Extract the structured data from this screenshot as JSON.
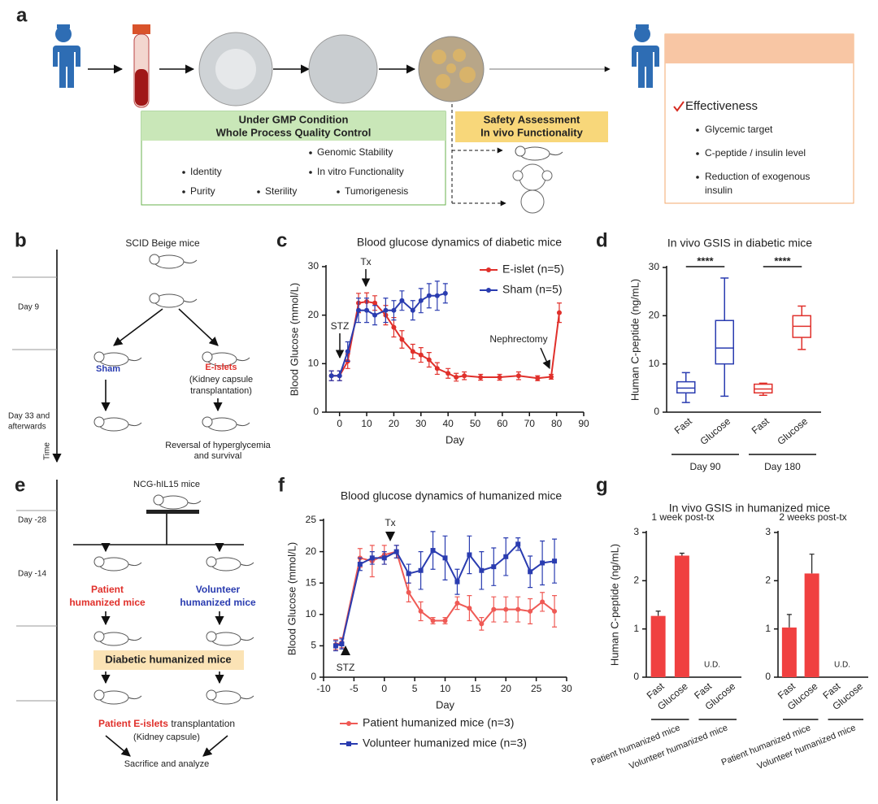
{
  "panel_a": {
    "label": "a",
    "gmp_box": {
      "title_lines": [
        "Under GMP Condition",
        "Whole Process Quality Control"
      ],
      "items": [
        "Identity",
        "Purity",
        "Sterility",
        "Tumorigenesis",
        "Genomic Stability",
        "In vitro Functionality"
      ]
    },
    "safety_box": {
      "title_lines": [
        "Safety Assessment",
        "In vivo Functionality"
      ]
    },
    "outcome_box": {
      "heading": "Effectiveness",
      "items": [
        "Glycemic target",
        "C-peptide / insulin level",
        [
          "Reduction of exogenous",
          "insulin"
        ]
      ]
    }
  },
  "panel_b": {
    "label": "b",
    "strain": "SCID Beige mice",
    "day9": "Day 9",
    "day33": [
      "Day 33 and",
      "afterwards"
    ],
    "time": "Time",
    "sham": "Sham",
    "eislets": "E-islets",
    "transplant": [
      "(Kidney capsule",
      "transplantation)"
    ],
    "outcome": [
      "Reversal of hyperglycemia",
      "and survival"
    ]
  },
  "panel_e": {
    "label": "e",
    "strain": "NCG-hIL15 mice",
    "day28": "Day -28",
    "day14": "Day -14",
    "patient": [
      "Patient",
      "humanized mice"
    ],
    "volunteer": [
      "Volunteer",
      "humanized mice"
    ],
    "diabetic": "Diabetic humanized mice",
    "transplant": [
      "Patient E-islets",
      " transplantation"
    ],
    "capsule": "(Kidney capsule)",
    "final": "Sacrifice and analyze"
  },
  "chart_data": [
    {
      "type": "line",
      "panel": "c",
      "title": "Blood glucose dynamics of diabetic mice",
      "xlabel": "Day",
      "ylabel": "Blood Glucose (mmol/L)",
      "xlim": [
        -5,
        90
      ],
      "xticks": [
        0,
        10,
        20,
        30,
        40,
        50,
        60,
        70,
        80,
        90
      ],
      "ylim": [
        0,
        30
      ],
      "yticks": [
        0,
        10,
        20,
        30
      ],
      "annotations": [
        "Tx",
        "STZ",
        "Nephrectomy"
      ],
      "series": [
        {
          "name": "E-islet (n=5)",
          "color": "#e0302b",
          "marker": "circle",
          "x": [
            -3,
            0,
            3,
            7,
            10,
            13,
            17,
            20,
            23,
            27,
            30,
            33,
            36,
            40,
            43,
            46,
            52,
            59,
            66,
            73,
            78,
            81
          ],
          "values": [
            7.5,
            7.5,
            10.5,
            22.5,
            22.8,
            22.5,
            20,
            17.5,
            15,
            12.5,
            11.8,
            10.8,
            9,
            8,
            7.2,
            7.5,
            7.2,
            7.2,
            7.5,
            7,
            7.3,
            20.5
          ],
          "errors": [
            1,
            1,
            1.5,
            2,
            1.8,
            1.5,
            2,
            2,
            1.8,
            1.5,
            1.5,
            1.5,
            1.2,
            1,
            0.8,
            0.8,
            0.6,
            0.6,
            0.8,
            0.5,
            0.5,
            2
          ]
        },
        {
          "name": "Sham (n=5)",
          "color": "#2a3cb0",
          "marker": "circle",
          "x": [
            -3,
            0,
            3,
            7,
            10,
            13,
            17,
            20,
            23,
            27,
            30,
            33,
            36,
            39
          ],
          "values": [
            7.5,
            7.5,
            12.5,
            21,
            21,
            20,
            21,
            21,
            23,
            21,
            23,
            24,
            24,
            24.5
          ],
          "errors": [
            1,
            1,
            2,
            2.5,
            2.5,
            2,
            2.5,
            2,
            2,
            2,
            2.5,
            2.5,
            3,
            2
          ]
        }
      ]
    },
    {
      "type": "box",
      "panel": "d",
      "title": "In vivo GSIS in diabetic mice",
      "ylabel": "Human C-peptide (ng/mL)",
      "ylim": [
        0,
        30
      ],
      "yticks": [
        0,
        10,
        20,
        30
      ],
      "categories": [
        "Fast",
        "Glucose",
        "Fast",
        "Glucose"
      ],
      "groups": [
        "Day 90",
        "Day 180"
      ],
      "significance": [
        "****",
        "****"
      ],
      "boxes": [
        {
          "color": "#2a3cb0",
          "min": 2,
          "q1": 4,
          "median": 5,
          "q3": 6.3,
          "max": 8.2
        },
        {
          "color": "#2a3cb0",
          "min": 3.3,
          "q1": 10,
          "median": 13.3,
          "q3": 19,
          "max": 27.8
        },
        {
          "color": "#e0302b",
          "min": 3.5,
          "q1": 4,
          "median": 4.8,
          "q3": 5.8,
          "max": 6
        },
        {
          "color": "#e0302b",
          "min": 13,
          "q1": 15.5,
          "median": 17.8,
          "q3": 20,
          "max": 22
        }
      ]
    },
    {
      "type": "line",
      "panel": "f",
      "title": "Blood glucose dynamics of humanized mice",
      "xlabel": "Day",
      "ylabel": "Blood Glucose (mmol/L)",
      "xlim": [
        -10,
        30
      ],
      "xticks": [
        -10,
        -5,
        0,
        5,
        10,
        15,
        20,
        25,
        30
      ],
      "ylim": [
        0,
        25
      ],
      "yticks": [
        0,
        5,
        10,
        15,
        20,
        25
      ],
      "annotations": [
        "Tx",
        "STZ"
      ],
      "series": [
        {
          "name": "Patient humanized mice (n=3)",
          "color": "#ef5a55",
          "marker": "circle",
          "x": [
            -8,
            -7,
            -4,
            -2,
            0,
            2,
            4,
            6,
            8,
            10,
            12,
            14,
            16,
            18,
            20,
            22,
            24,
            26,
            28
          ],
          "values": [
            5.2,
            5.5,
            19,
            18.5,
            19.5,
            20,
            13.5,
            10.5,
            9,
            9,
            11.8,
            11,
            8.5,
            10.8,
            10.8,
            10.8,
            10.5,
            12,
            10.5
          ],
          "errors": [
            0.8,
            0.8,
            1.5,
            2.5,
            1.5,
            1,
            1.5,
            1.5,
            0.5,
            0.5,
            1,
            2,
            1,
            2,
            2,
            2,
            2,
            1.5,
            2.5
          ]
        },
        {
          "name": "Volunteer humanized mice (n=3)",
          "color": "#2a3cb0",
          "marker": "square",
          "x": [
            -8,
            -7,
            -4,
            -2,
            0,
            2,
            4,
            6,
            8,
            10,
            12,
            14,
            16,
            18,
            20,
            22,
            24,
            26,
            28
          ],
          "values": [
            5,
            5.3,
            18,
            19,
            19,
            20,
            16.5,
            17,
            20.2,
            19,
            15.2,
            19.5,
            17,
            17.6,
            19.2,
            21.2,
            16.8,
            18.2,
            18.5
          ],
          "errors": [
            0.8,
            0.8,
            1,
            1,
            1,
            1,
            1.5,
            3,
            3,
            3.5,
            2,
            3,
            3,
            3,
            3,
            1,
            2.5,
            3.5,
            3.5
          ]
        }
      ]
    },
    {
      "type": "bar",
      "panel": "g",
      "title": "In vivo GSIS in humanized mice",
      "subtitle": "1 week post-tx",
      "ylabel": "Human C-peptide (ng/mL)",
      "ylim": [
        0,
        3
      ],
      "yticks": [
        0,
        1,
        2,
        3
      ],
      "color": "#f04040",
      "categories": [
        "Fast",
        "Glucose",
        "Fast",
        "Glucose"
      ],
      "groups": [
        "Patient humanized mice",
        "Volunteer humanized mice"
      ],
      "values": [
        1.27,
        2.52,
        null,
        null
      ],
      "errors": [
        0.1,
        0.05,
        null,
        null
      ],
      "annotations": [
        "U.D."
      ]
    },
    {
      "type": "bar",
      "subtitle": "2 weeks post-tx",
      "ylim": [
        0,
        3
      ],
      "yticks": [
        0,
        1,
        2,
        3
      ],
      "color": "#f04040",
      "categories": [
        "Fast",
        "Glucose",
        "Fast",
        "Glucose"
      ],
      "groups": [
        "Patient humanized mice",
        "Volunteer humanized mice"
      ],
      "values": [
        1.03,
        2.15,
        null,
        null
      ],
      "errors": [
        0.27,
        0.4,
        null,
        null
      ],
      "annotations": [
        "U.D."
      ]
    }
  ]
}
